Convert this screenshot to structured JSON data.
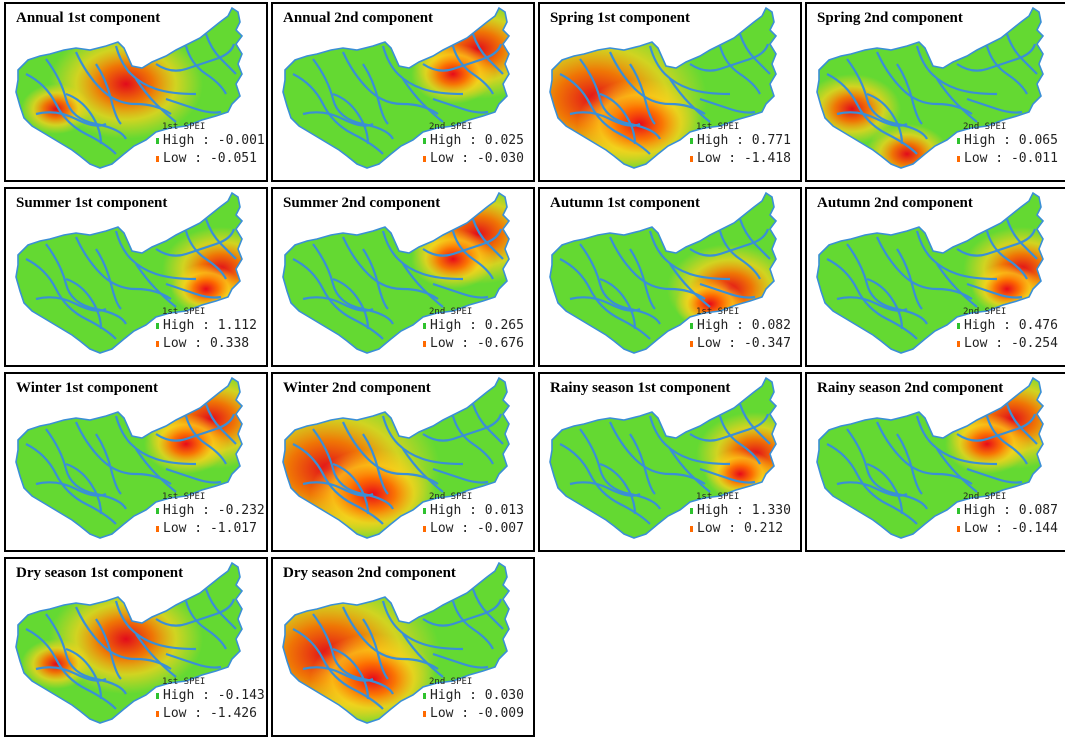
{
  "colors": {
    "high": "#2ec22e",
    "low": "#ff6a00",
    "river": "#3a8fd6"
  },
  "legend": {
    "high_label": "High : ",
    "low_label": "Low : "
  },
  "panels": [
    {
      "title": "Annual 1st component",
      "legend_title": "1st SPEI",
      "high": "-0.001",
      "low": "-0.051",
      "pattern": "center-red"
    },
    {
      "title": "Annual 2nd component",
      "legend_title": "2nd SPEI",
      "high": "0.025",
      "low": "-0.030",
      "pattern": "ne-red"
    },
    {
      "title": "Spring 1st component",
      "legend_title": "1st SPEI",
      "high": "0.771",
      "low": "-1.418",
      "pattern": "west-red"
    },
    {
      "title": "Spring 2nd component",
      "legend_title": "2nd SPEI",
      "high": "0.065",
      "low": "-0.011",
      "pattern": "sw-red"
    },
    {
      "title": "Summer 1st component",
      "legend_title": "1st SPEI",
      "high": "1.112",
      "low": "0.338",
      "pattern": "east-red"
    },
    {
      "title": "Summer 2nd component",
      "legend_title": "2nd SPEI",
      "high": "0.265",
      "low": "-0.676",
      "pattern": "ne-red"
    },
    {
      "title": "Autumn 1st component",
      "legend_title": "1st SPEI",
      "high": "0.082",
      "low": "-0.347",
      "pattern": "se-red"
    },
    {
      "title": "Autumn 2nd component",
      "legend_title": "2nd SPEI",
      "high": "0.476",
      "low": "-0.254",
      "pattern": "east-red"
    },
    {
      "title": "Winter 1st component",
      "legend_title": "1st SPEI",
      "high": "-0.232",
      "low": "-1.017",
      "pattern": "ne-red"
    },
    {
      "title": "Winter 2nd component",
      "legend_title": "2nd SPEI",
      "high": "0.013",
      "low": "-0.007",
      "pattern": "west-red"
    },
    {
      "title": "Rainy season 1st component",
      "legend_title": "1st SPEI",
      "high": "1.330",
      "low": "0.212",
      "pattern": "east-red"
    },
    {
      "title": "Rainy season 2nd component",
      "legend_title": "2nd SPEI",
      "high": "0.087",
      "low": "-0.144",
      "pattern": "ne-red"
    },
    {
      "title": "Dry season 1st component",
      "legend_title": "1st SPEI",
      "high": "-0.143",
      "low": "-1.426",
      "pattern": "center-red"
    },
    {
      "title": "Dry season 2nd component",
      "legend_title": "2nd SPEI",
      "high": "0.030",
      "low": "-0.009",
      "pattern": "west-red"
    }
  ]
}
